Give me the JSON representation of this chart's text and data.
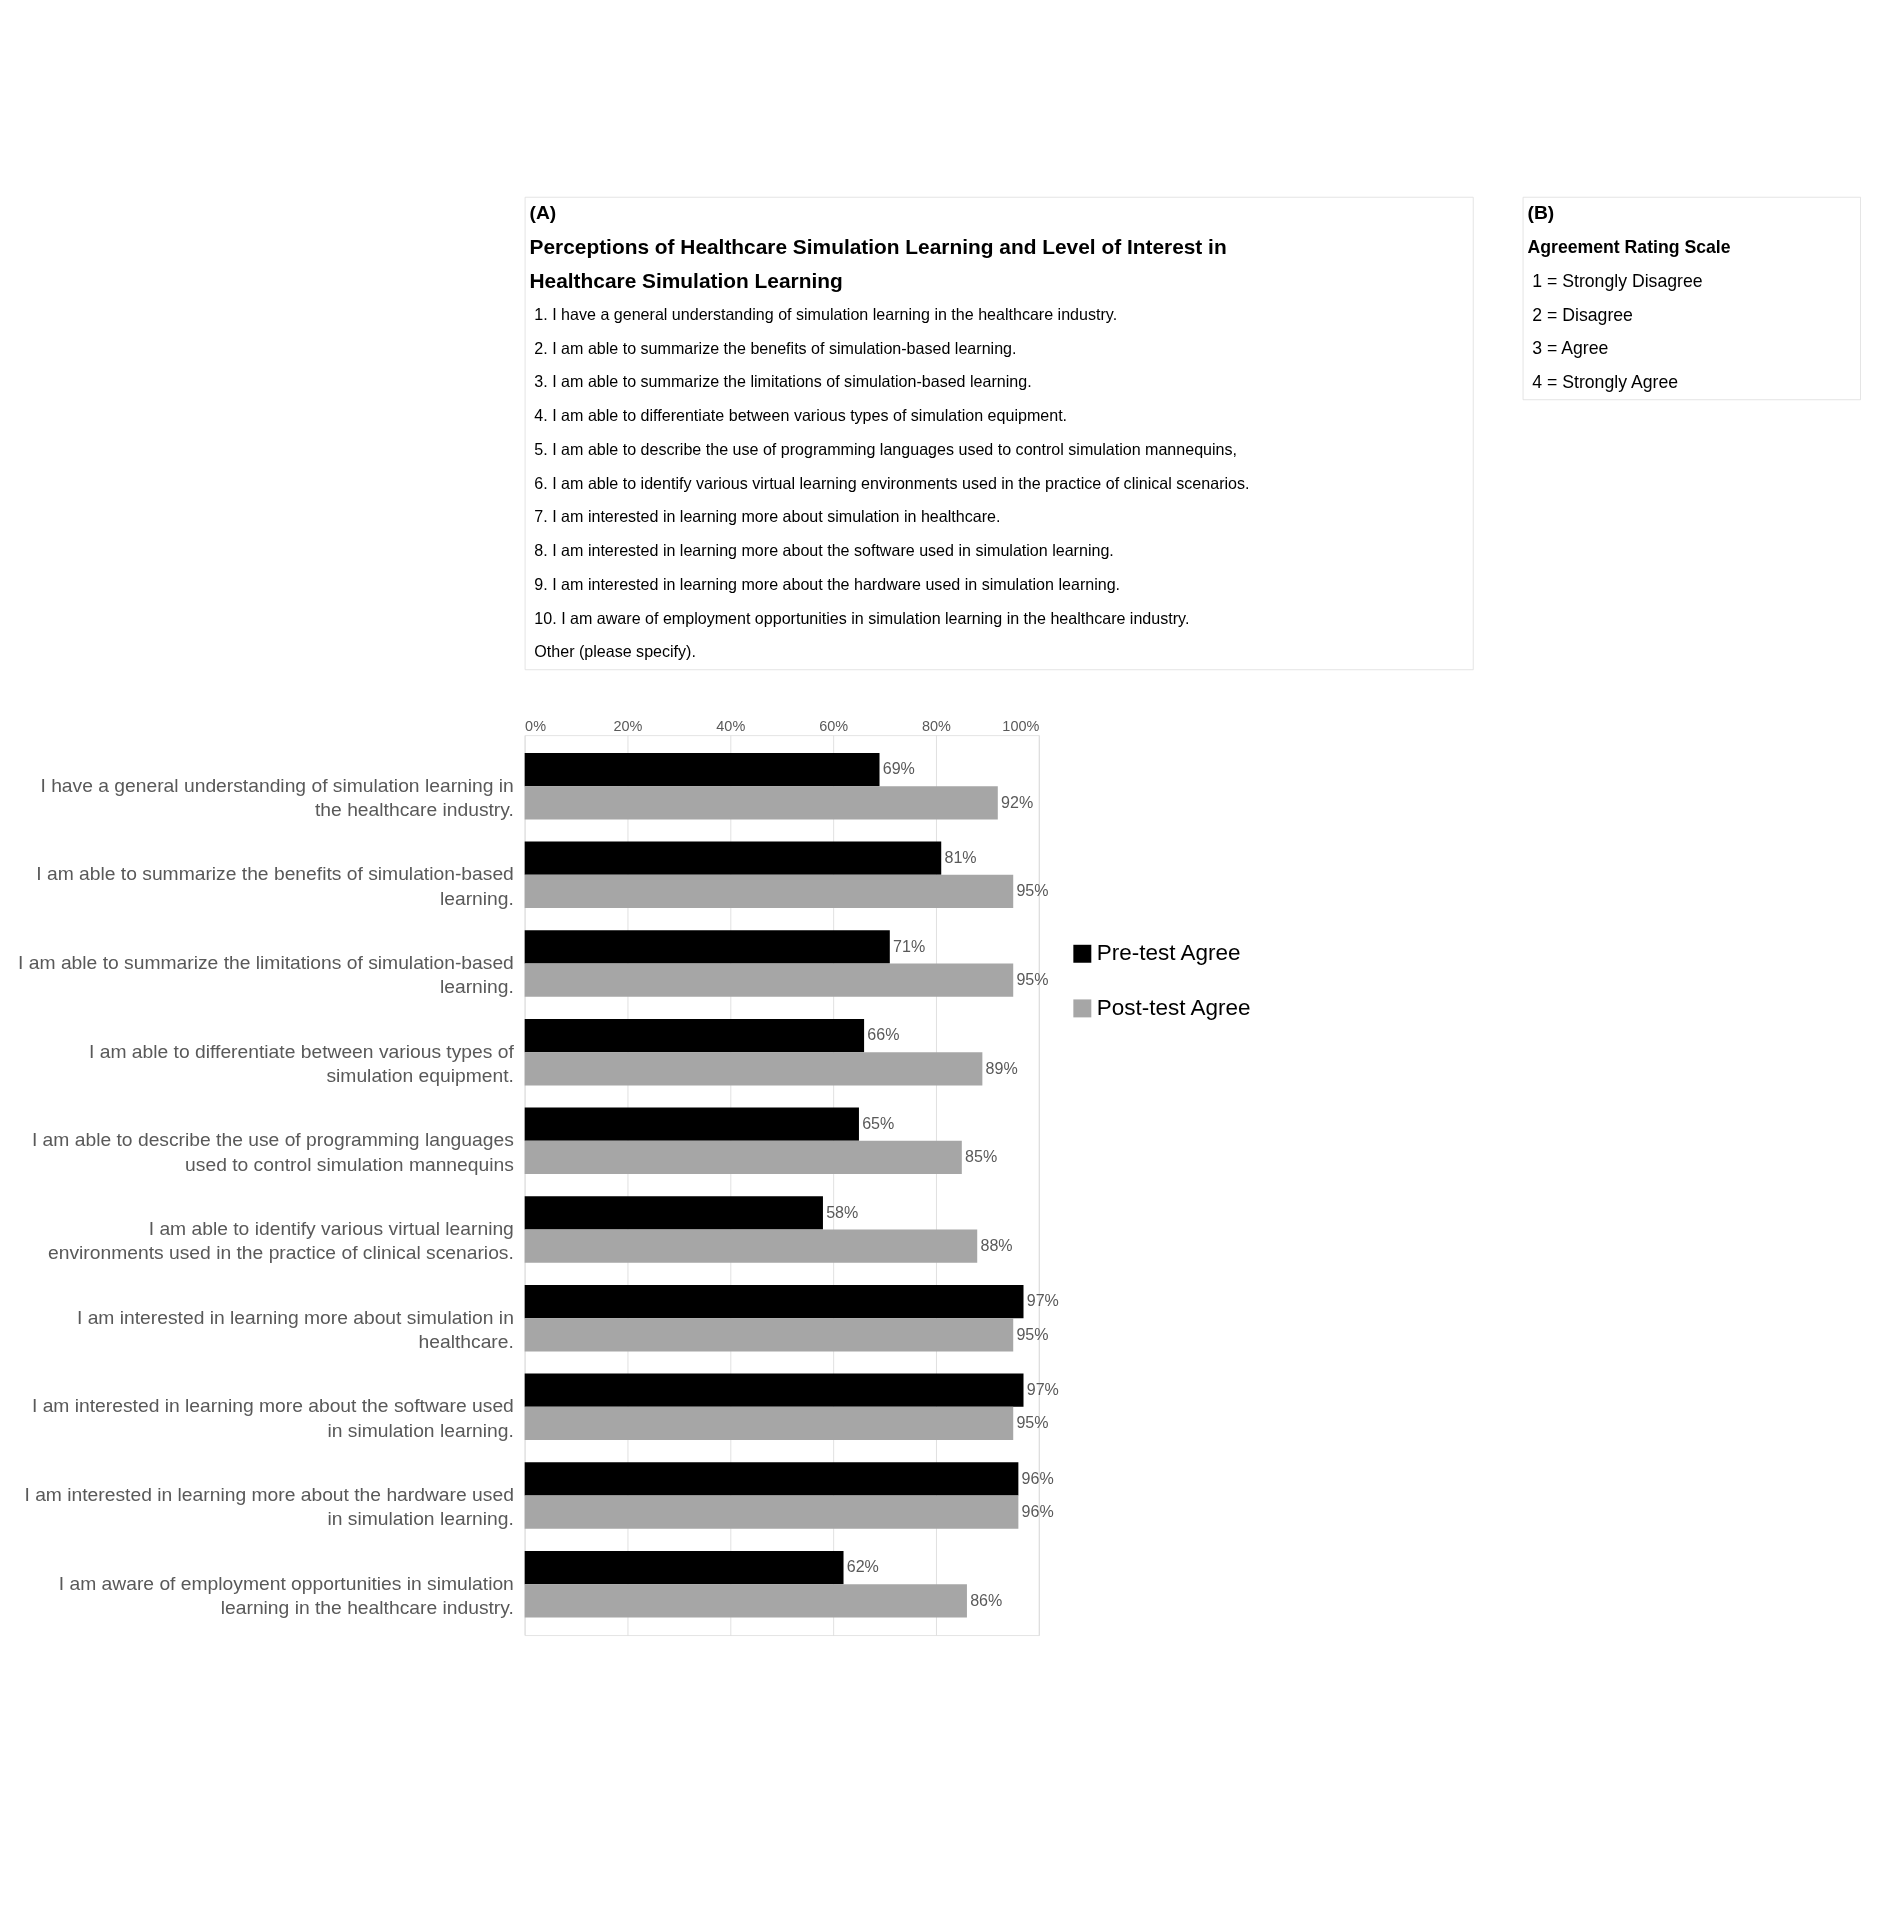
{
  "chart_data": [
    {
      "type": "other",
      "title": "(A)",
      "subtitle": "Perceptions of Healthcare Simulation Learning and Level of Interest in Healthcare Simulation Learning",
      "annotations": [
        "1. I have a general understanding of simulation learning in the healthcare industry.",
        "2. I am able to summarize the benefits of simulation-based learning.",
        "3. I am able to summarize the limitations of simulation-based learning.",
        "4. I am able to differentiate between various types of simulation equipment.",
        "5. I am able to describe the use of programming languages used to control simulation mannequins,",
        "6. I am able to identify various virtual learning environments used in the practice of clinical scenarios.",
        "7. I am interested in learning more about simulation in healthcare.",
        "8. I am interested in learning more about the software used in simulation learning.",
        "9. I am interested in learning more about the hardware used in simulation learning.",
        "10. I am aware of employment opportunities in simulation learning in the healthcare industry.",
        "Other (please specify)."
      ]
    },
    {
      "type": "other",
      "title": "(B)",
      "subtitle": "Agreement Rating Scale",
      "annotations": [
        "1 = Strongly Disagree",
        "2 = Disagree",
        "3 = Agree",
        "4 = Strongly Agree"
      ]
    },
    {
      "type": "bar",
      "orientation": "horizontal",
      "categories": [
        "I have a general understanding of simulation learning in the healthcare industry.",
        "I am able to summarize the benefits of simulation-based learning.",
        "I am able to summarize the limitations of simulation-based learning.",
        "I am able to differentiate between various types of simulation equipment.",
        "I am able to describe the use of programming languages used to control simulation mannequins",
        "I am able to identify various virtual learning environments used in the practice of clinical scenarios.",
        "I am interested in learning more about simulation in healthcare.",
        "I am interested in learning more about the software used in simulation learning.",
        "I am interested in learning more about the hardware used in simulation learning.",
        "I am aware of employment opportunities in simulation learning in the healthcare industry."
      ],
      "series": [
        {
          "name": "Pre-test Agree",
          "color": "#000000",
          "values": [
            69,
            81,
            71,
            66,
            65,
            58,
            97,
            97,
            96,
            62
          ],
          "value_labels": [
            "69%",
            "81%",
            "71%",
            "66%",
            "65%",
            "58%",
            "97%",
            "97%",
            "96%",
            "62%"
          ]
        },
        {
          "name": "Post-test Agree",
          "color": "#a6a6a6",
          "values": [
            92,
            95,
            95,
            89,
            85,
            88,
            95,
            95,
            96,
            86
          ],
          "value_labels": [
            "92%",
            "95%",
            "95%",
            "89%",
            "85%",
            "88%",
            "95%",
            "95%",
            "96%",
            "86%"
          ]
        }
      ],
      "xlim": [
        0,
        100
      ],
      "xticks": [
        {
          "value": 0,
          "label": "0%"
        },
        {
          "value": 20,
          "label": "20%"
        },
        {
          "value": 40,
          "label": "40%"
        },
        {
          "value": 60,
          "label": "60%"
        },
        {
          "value": 80,
          "label": "80%"
        },
        {
          "value": 100,
          "label": "100%"
        }
      ],
      "grid": "x",
      "legend": "right"
    }
  ]
}
